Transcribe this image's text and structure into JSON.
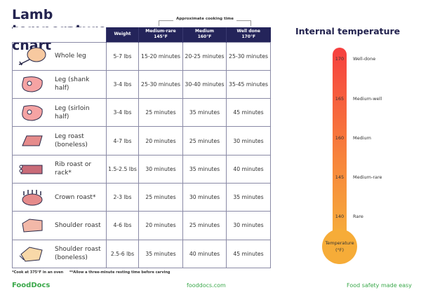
{
  "title": "Lamb temperature chart",
  "header_group": "Approximate cooking time",
  "columns": [
    {
      "l1": "Weight",
      "l2": ""
    },
    {
      "l1": "Medium-rare",
      "l2": "145°F"
    },
    {
      "l1": "Medium",
      "l2": "160°F"
    },
    {
      "l1": "Well done",
      "l2": "170°F"
    }
  ],
  "rows": [
    {
      "icon": "drumstick-icon",
      "name": "Whole leg",
      "weight": "5-7 lbs",
      "mr": "15-20 minutes",
      "m": "20-25 minutes",
      "wd": "25-30 minutes"
    },
    {
      "icon": "steak-icon",
      "name": "Leg (shank half)",
      "weight": "3-4 lbs",
      "mr": "25-30 minutes",
      "m": "30-40 minutes",
      "wd": "35-45 minutes"
    },
    {
      "icon": "steak-icon",
      "name": "Leg (sirloin half)",
      "weight": "3-4 lbs",
      "mr": "25 minutes",
      "m": "35 minutes",
      "wd": "45 minutes"
    },
    {
      "icon": "roast-icon",
      "name": "Leg roast (boneless)",
      "weight": "4-7 lbs",
      "mr": "20 minutes",
      "m": "25 minutes",
      "wd": "30 minutes"
    },
    {
      "icon": "rib-rack-icon",
      "name": "Rib roast or rack*",
      "weight": "1.5-2.5 lbs",
      "mr": "30 minutes",
      "m": "35 minutes",
      "wd": "40 minutes"
    },
    {
      "icon": "crown-roast-icon",
      "name": "Crown roast*",
      "weight": "2-3 lbs",
      "mr": "25 minutes",
      "m": "30 minutes",
      "wd": "35 minutes"
    },
    {
      "icon": "shoulder-roast-icon",
      "name": "Shoulder roast",
      "weight": "4-6 lbs",
      "mr": "20 minutes",
      "m": "25 minutes",
      "wd": "30 minutes"
    },
    {
      "icon": "boneless-shoulder-icon",
      "name": "Shoulder roast (boneless)",
      "weight": "2.5-6 lbs",
      "mr": "35 minutes",
      "m": "40 minutes",
      "wd": "45 minutes"
    }
  ],
  "footnote": "*Cook at 375°F in an oven     **Allow a three-minute resting time before carving",
  "thermometer": {
    "title": "Internal temperature",
    "bulb_l1": "Temperature",
    "bulb_l2": "(°F)",
    "marks": [
      {
        "t": "170",
        "label": "Well-done"
      },
      {
        "t": "165",
        "label": "Medium-well"
      },
      {
        "t": "160",
        "label": "Medium"
      },
      {
        "t": "145",
        "label": "Medium-rare"
      },
      {
        "t": "140",
        "label": "Rare"
      }
    ],
    "colors": {
      "top": "#f63f3f",
      "bottom": "#f6ac38"
    }
  },
  "footer": {
    "logo": "FoodDocs",
    "url": "fooddocs.com",
    "tagline": "Food safety made easy"
  }
}
